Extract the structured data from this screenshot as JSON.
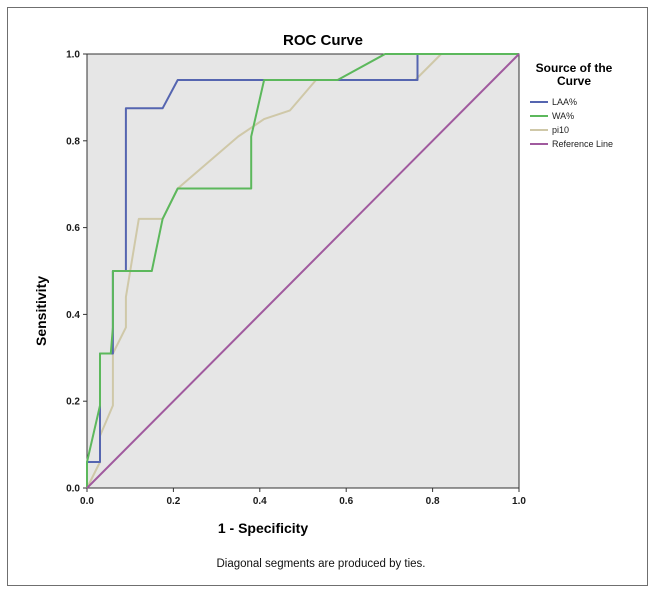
{
  "chart_data": {
    "type": "line",
    "title": "ROC Curve",
    "xlabel": "1 - Specificity",
    "ylabel": "Sensitivity",
    "xlim": [
      0,
      1
    ],
    "ylim": [
      0,
      1
    ],
    "xticks": [
      "0.0",
      "0.2",
      "0.4",
      "0.6",
      "0.8",
      "1.0"
    ],
    "yticks": [
      "0.0",
      "0.2",
      "0.4",
      "0.6",
      "0.8",
      "1.0"
    ],
    "grid": false,
    "legend_title": "Source of the Curve",
    "legend_position": "right",
    "footnote": "Diagonal segments are produced by ties.",
    "plot_background": "#e6e6e6",
    "series": [
      {
        "name": "LAA%",
        "color": "#5565b0",
        "points": [
          [
            0,
            0
          ],
          [
            0,
            0.06
          ],
          [
            0.03,
            0.06
          ],
          [
            0.03,
            0.31
          ],
          [
            0.06,
            0.31
          ],
          [
            0.06,
            0.5
          ],
          [
            0.09,
            0.5
          ],
          [
            0.09,
            0.875
          ],
          [
            0.175,
            0.875
          ],
          [
            0.21,
            0.94
          ],
          [
            0.765,
            0.94
          ],
          [
            0.765,
            1
          ],
          [
            1,
            1
          ]
        ]
      },
      {
        "name": "WA%",
        "color": "#5cb85c",
        "points": [
          [
            0,
            0
          ],
          [
            0,
            0.06
          ],
          [
            0.03,
            0.19
          ],
          [
            0.03,
            0.31
          ],
          [
            0.055,
            0.31
          ],
          [
            0.06,
            0.37
          ],
          [
            0.06,
            0.5
          ],
          [
            0.15,
            0.5
          ],
          [
            0.175,
            0.62
          ],
          [
            0.21,
            0.69
          ],
          [
            0.38,
            0.69
          ],
          [
            0.38,
            0.81
          ],
          [
            0.41,
            0.94
          ],
          [
            0.58,
            0.94
          ],
          [
            0.69,
            1
          ],
          [
            1,
            1
          ]
        ]
      },
      {
        "name": "pi10",
        "color": "#cfc8a8",
        "points": [
          [
            0,
            0
          ],
          [
            0.03,
            0.06
          ],
          [
            0.03,
            0.12
          ],
          [
            0.06,
            0.19
          ],
          [
            0.06,
            0.31
          ],
          [
            0.09,
            0.37
          ],
          [
            0.09,
            0.44
          ],
          [
            0.12,
            0.62
          ],
          [
            0.175,
            0.62
          ],
          [
            0.21,
            0.69
          ],
          [
            0.35,
            0.81
          ],
          [
            0.41,
            0.85
          ],
          [
            0.47,
            0.87
          ],
          [
            0.53,
            0.94
          ],
          [
            0.76,
            0.94
          ],
          [
            0.82,
            1
          ],
          [
            1,
            1
          ]
        ]
      },
      {
        "name": "Reference Line",
        "color": "#a05a9e",
        "points": [
          [
            0,
            0
          ],
          [
            1,
            1
          ]
        ]
      }
    ]
  }
}
